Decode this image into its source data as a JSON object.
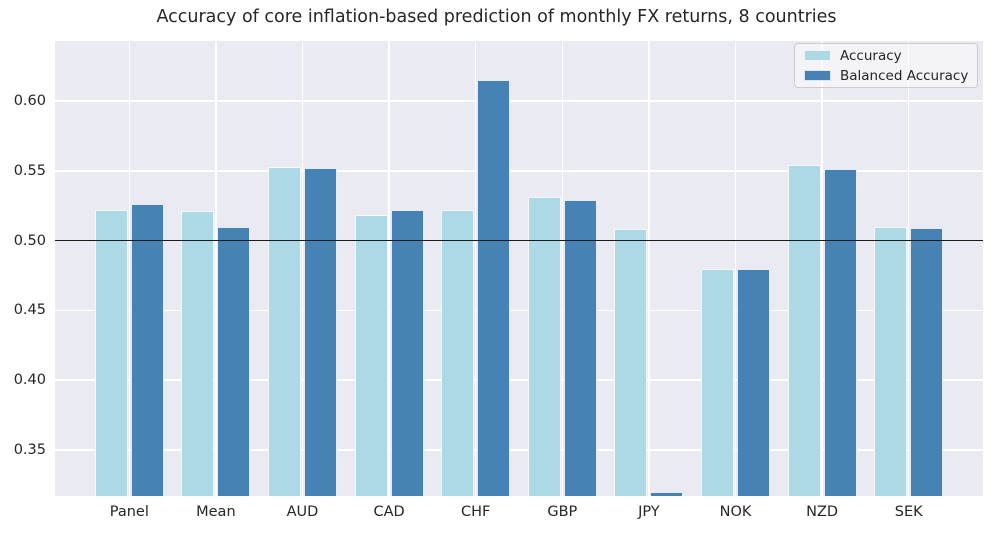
{
  "title": "Accuracy of core inflation-based prediction of monthly FX returns, 8 countries",
  "colors": {
    "accuracy": "#ADD8E6",
    "balanced_accuracy": "#4682B4",
    "plot_background": "#EAEAF2",
    "gridline": "#FFFFFF",
    "reference_line": "#1A1A1A",
    "text": "#262626"
  },
  "legend": {
    "entries": [
      {
        "label": "Accuracy",
        "color": "#ADD8E6"
      },
      {
        "label": "Balanced Accuracy",
        "color": "#4682B4"
      }
    ]
  },
  "chart_data": {
    "type": "bar",
    "title": "Accuracy of core inflation-based prediction of monthly FX returns, 8 countries",
    "xlabel": "",
    "ylabel": "",
    "categories": [
      "Panel",
      "Mean",
      "AUD",
      "CAD",
      "CHF",
      "GBP",
      "JPY",
      "NOK",
      "NZD",
      "SEK"
    ],
    "series": [
      {
        "name": "Accuracy",
        "color": "#ADD8E6",
        "values": [
          0.522,
          0.521,
          0.553,
          0.518,
          0.522,
          0.531,
          0.508,
          0.48,
          0.554,
          0.51
        ]
      },
      {
        "name": "Balanced Accuracy",
        "color": "#4682B4",
        "values": [
          0.526,
          0.51,
          0.552,
          0.522,
          0.615,
          0.529,
          0.32,
          0.48,
          0.551,
          0.509
        ]
      }
    ],
    "ylim": [
      0.317,
      0.643
    ],
    "yticks": [
      0.35,
      0.4,
      0.45,
      0.5,
      0.55,
      0.6
    ],
    "ytick_labels": [
      "0.35",
      "0.40",
      "0.45",
      "0.50",
      "0.55",
      "0.60"
    ],
    "reference_line_y": 0.5,
    "grid": true,
    "legend_position": "upper right"
  }
}
